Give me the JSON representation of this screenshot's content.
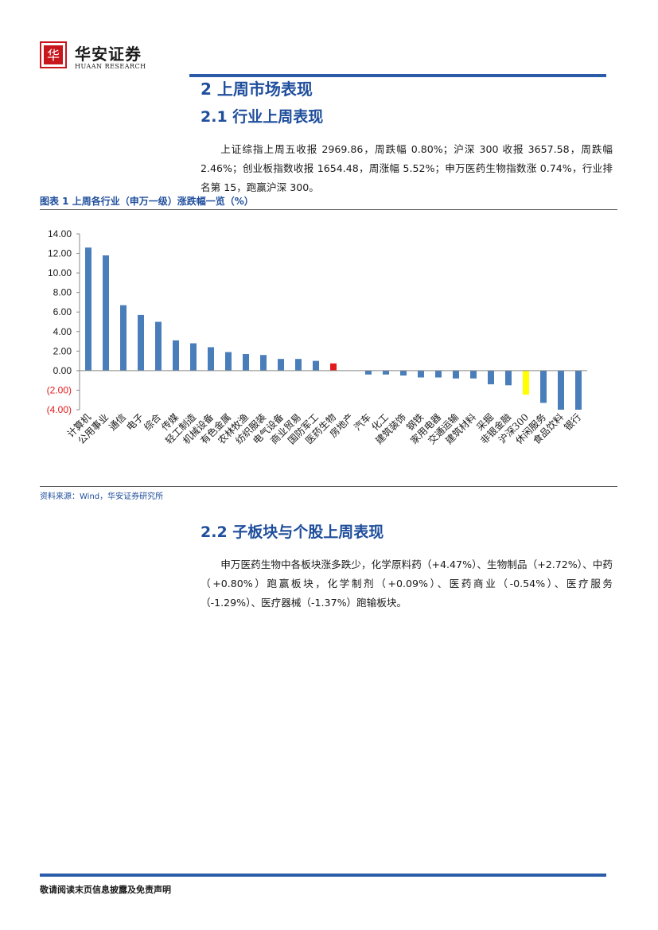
{
  "header": {
    "logo_cn": "华安证券",
    "logo_en": "HUAAN RESEARCH",
    "seal_text": "华",
    "brand_color": "#c8161d"
  },
  "section": {
    "title": "2 上周市场表现",
    "sub1": "2.1 行业上周表现",
    "para1": "上证综指上周五收报 2969.86，周跌幅 0.80%；沪深 300 收报 3657.58，周跌幅 2.46%；创业板指数收报 1654.48，周涨幅 5.52%；申万医药生物指数涨 0.74%，行业排名第 15，跑赢沪深 300。",
    "sub2": "2.2 子板块与个股上周表现",
    "para2": "申万医药生物中各板块涨多跌少，化学原料药（+4.47%）、生物制品（+2.72%）、中药（+0.80%）跑赢板块，化学制剂（+0.09%）、医药商业（-0.54%）、医疗服务（-1.29%）、医疗器械（-1.37%）跑输板块。"
  },
  "figure": {
    "title": "图表 1 上周各行业（申万一级）涨跌幅一览（%）",
    "source": "资料来源：Wind，华安证券研究所"
  },
  "chart_data": {
    "type": "bar",
    "categories": [
      "计算机",
      "公用事业",
      "通信",
      "电子",
      "综合",
      "传媒",
      "轻工制造",
      "机械设备",
      "有色金属",
      "农林牧渔",
      "纺织服装",
      "电气设备",
      "商业贸易",
      "国防军工",
      "医药生物",
      "房地产",
      "汽车",
      "化工",
      "建筑装饰",
      "钢铁",
      "家用电器",
      "交通运输",
      "建筑材料",
      "采掘",
      "非银金融",
      "沪深300",
      "休闲服务",
      "食品饮料",
      "银行"
    ],
    "values": [
      12.6,
      11.8,
      6.7,
      5.7,
      5.0,
      3.1,
      2.8,
      2.4,
      1.9,
      1.7,
      1.6,
      1.2,
      1.2,
      1.0,
      0.74,
      0.0,
      -0.4,
      -0.4,
      -0.5,
      -0.7,
      -0.7,
      -0.8,
      -0.8,
      -1.4,
      -1.5,
      -2.46,
      -3.3,
      -4.0,
      -4.0
    ],
    "highlight": {
      "医药生物": "#e31a1c",
      "沪深300": "#ffff00"
    },
    "bar_color": "#4a7ebb",
    "ylim": [
      -4,
      14
    ],
    "yticks": [
      "14.00",
      "12.00",
      "10.00",
      "8.00",
      "6.00",
      "4.00",
      "2.00",
      "0.00",
      "(2.00)",
      "(4.00)"
    ],
    "ytick_values": [
      14,
      12,
      10,
      8,
      6,
      4,
      2,
      0,
      -2,
      -4
    ],
    "negative_tick_color": "#e31a1c",
    "grid": false,
    "legend": "none"
  },
  "footer": {
    "text": "敬请阅读末页信息披露及免责声明"
  }
}
